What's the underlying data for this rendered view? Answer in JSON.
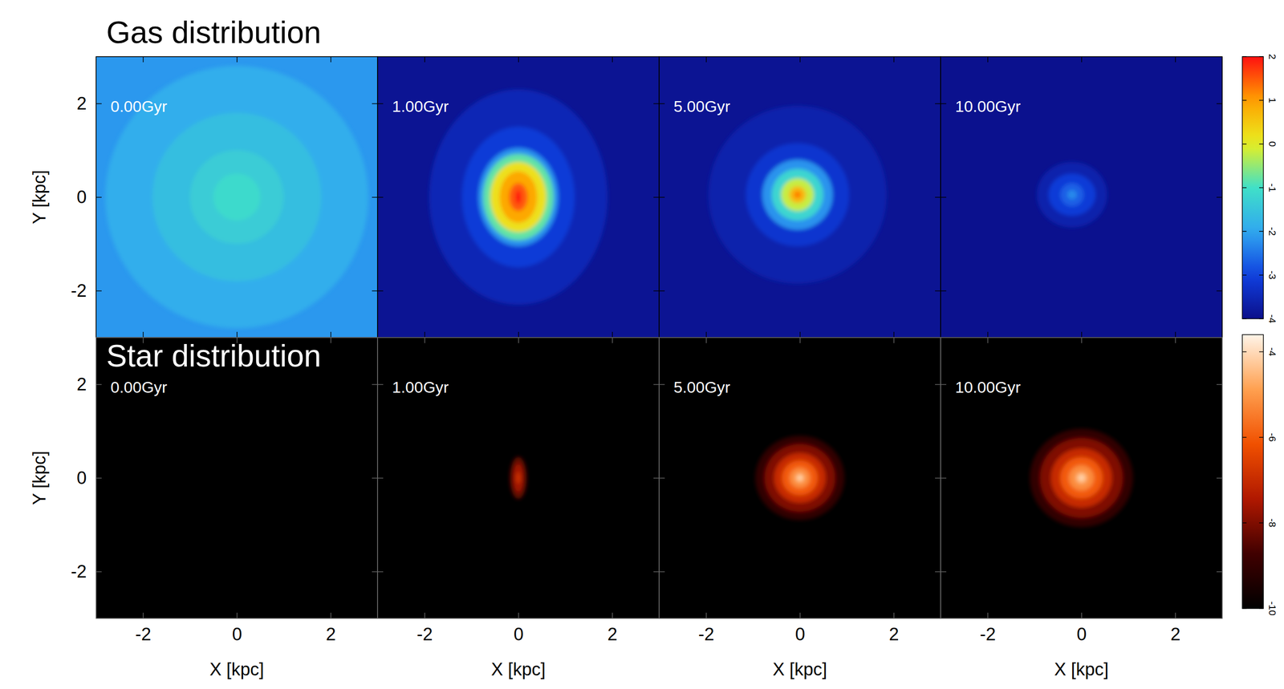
{
  "chart_data": [
    {
      "type": "heatmap",
      "title": "Gas distribution",
      "xlim": [
        -3,
        3
      ],
      "ylim": [
        -3,
        3
      ],
      "xticks": [
        -2,
        0,
        2
      ],
      "yticks": [
        -2,
        0,
        2
      ],
      "y_label": "Y [kpc]",
      "tick_labels": "y",
      "colorbar": {
        "range": [
          -4,
          2
        ],
        "ticks": [
          2,
          1,
          0,
          -1,
          -2,
          -3,
          -4
        ]
      },
      "panels": [
        {
          "title": "0.00Gyr",
          "center": [
            0,
            0
          ],
          "background": -2.15,
          "rings": [
            {
              "rx": 2.8,
              "ry": 2.8,
              "value": -1.9
            },
            {
              "rx": 1.8,
              "ry": 1.8,
              "value": -1.6
            },
            {
              "rx": 1.0,
              "ry": 1.0,
              "value": -1.35
            },
            {
              "rx": 0.5,
              "ry": 0.5,
              "value": -1.1
            }
          ]
        },
        {
          "title": "1.00Gyr",
          "center": [
            0,
            0
          ],
          "background": -3.9,
          "rings": [
            {
              "rx": 1.9,
              "ry": 2.3,
              "value": -3.5
            },
            {
              "rx": 1.2,
              "ry": 1.5,
              "value": -3.1
            },
            {
              "rx": 0.85,
              "ry": 1.05,
              "value": -2.2
            },
            {
              "rx": 0.75,
              "ry": 0.92,
              "value": -0.8
            },
            {
              "rx": 0.6,
              "ry": 0.75,
              "value": 0.2
            },
            {
              "rx": 0.4,
              "ry": 0.55,
              "value": 0.9
            },
            {
              "rx": 0.2,
              "ry": 0.3,
              "value": 1.5
            },
            {
              "rx": 0.06,
              "ry": 0.15,
              "value": 2.0
            }
          ]
        },
        {
          "title": "5.00Gyr",
          "center": [
            -0.05,
            0.05
          ],
          "background": -3.9,
          "rings": [
            {
              "rx": 1.9,
              "ry": 1.9,
              "value": -3.6
            },
            {
              "rx": 1.1,
              "ry": 1.1,
              "value": -3.2
            },
            {
              "rx": 0.75,
              "ry": 0.75,
              "value": -2.2
            },
            {
              "rx": 0.55,
              "ry": 0.55,
              "value": -1.2
            },
            {
              "rx": 0.35,
              "ry": 0.35,
              "value": -0.2
            },
            {
              "rx": 0.18,
              "ry": 0.18,
              "value": 0.7
            },
            {
              "rx": 0.07,
              "ry": 0.07,
              "value": 1.3
            }
          ]
        },
        {
          "title": "10.00Gyr",
          "center": [
            -0.2,
            0.05
          ],
          "background": -3.95,
          "rings": [
            {
              "rx": 0.75,
              "ry": 0.7,
              "value": -3.6
            },
            {
              "rx": 0.5,
              "ry": 0.45,
              "value": -3.1
            },
            {
              "rx": 0.25,
              "ry": 0.25,
              "value": -2.7
            },
            {
              "rx": 0.1,
              "ry": 0.1,
              "value": -2.3
            }
          ]
        }
      ]
    },
    {
      "type": "heatmap",
      "title": "Star distribution",
      "xlim": [
        -3,
        3
      ],
      "ylim": [
        -3,
        3
      ],
      "xticks": [
        -2,
        0,
        2
      ],
      "yticks": [
        -2,
        0,
        2
      ],
      "x_label": "X [kpc]",
      "y_label": "Y [kpc]",
      "colorbar": {
        "range": [
          -10,
          -3.6
        ],
        "ticks": [
          -4,
          -6,
          -8,
          -10
        ]
      },
      "panels": [
        {
          "title": "0.00Gyr",
          "center": [
            0,
            0
          ],
          "background": -10,
          "rings": []
        },
        {
          "title": "1.00Gyr",
          "center": [
            0,
            0
          ],
          "background": -10,
          "rings": [
            {
              "rx": 0.18,
              "ry": 0.45,
              "value": -8.3
            },
            {
              "rx": 0.1,
              "ry": 0.3,
              "value": -7.6
            },
            {
              "rx": 0.04,
              "ry": 0.12,
              "value": -6.8
            }
          ]
        },
        {
          "title": "5.00Gyr",
          "center": [
            0,
            0
          ],
          "background": -10,
          "rings": [
            {
              "rx": 0.95,
              "ry": 0.9,
              "value": -9.0
            },
            {
              "rx": 0.75,
              "ry": 0.72,
              "value": -8.0
            },
            {
              "rx": 0.55,
              "ry": 0.53,
              "value": -7.0
            },
            {
              "rx": 0.38,
              "ry": 0.37,
              "value": -6.0
            },
            {
              "rx": 0.22,
              "ry": 0.22,
              "value": -5.2
            },
            {
              "rx": 0.1,
              "ry": 0.1,
              "value": -4.5
            },
            {
              "rx": 0.04,
              "ry": 0.04,
              "value": -4.0
            }
          ]
        },
        {
          "title": "10.00Gyr",
          "center": [
            0,
            0
          ],
          "background": -10,
          "rings": [
            {
              "rx": 1.1,
              "ry": 1.05,
              "value": -9.0
            },
            {
              "rx": 0.88,
              "ry": 0.85,
              "value": -8.0
            },
            {
              "rx": 0.65,
              "ry": 0.63,
              "value": -7.0
            },
            {
              "rx": 0.45,
              "ry": 0.44,
              "value": -6.0
            },
            {
              "rx": 0.27,
              "ry": 0.27,
              "value": -5.2
            },
            {
              "rx": 0.12,
              "ry": 0.12,
              "value": -4.5
            },
            {
              "rx": 0.05,
              "ry": 0.05,
              "value": -4.0
            }
          ]
        }
      ]
    }
  ]
}
